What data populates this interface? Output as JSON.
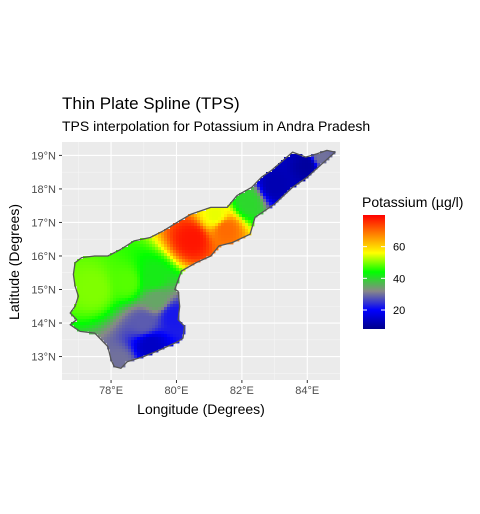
{
  "chart_data": {
    "type": "heatmap",
    "title": "Thin Plate Spline (TPS)",
    "subtitle": "TPS interpolation for Potassium in Andra Pradesh",
    "xlabel": "Longitude (Degrees)",
    "ylabel": "Latitude (Degrees)",
    "xlim": [
      76.5,
      85.0
    ],
    "ylim": [
      12.3,
      19.4
    ],
    "x_ticks": [
      78,
      80,
      82,
      84
    ],
    "x_tick_labels": [
      "78°E",
      "80°E",
      "82°E",
      "84°E"
    ],
    "y_ticks": [
      13,
      14,
      15,
      16,
      17,
      18,
      19
    ],
    "y_tick_labels": [
      "13°N",
      "14°N",
      "15°N",
      "16°N",
      "17°N",
      "18°N",
      "19°N"
    ],
    "grid": true,
    "legend": {
      "title": "Potassium (µg/l)",
      "position": "right",
      "range": [
        8,
        80
      ],
      "ticks": [
        20,
        40,
        60
      ],
      "tick_labels": [
        "20",
        "40",
        "60"
      ],
      "colors": [
        "#00008B",
        "#0000FF",
        "#888888",
        "#00FF00",
        "#FFFF00",
        "#FF8000",
        "#FF0000"
      ]
    },
    "outline": [
      [
        78.1,
        12.7
      ],
      [
        78.3,
        12.65
      ],
      [
        78.5,
        12.85
      ],
      [
        79.0,
        13.0
      ],
      [
        79.5,
        13.2
      ],
      [
        80.05,
        13.45
      ],
      [
        80.2,
        13.55
      ],
      [
        80.25,
        13.9
      ],
      [
        80.05,
        14.1
      ],
      [
        80.1,
        14.5
      ],
      [
        80.05,
        14.95
      ],
      [
        79.95,
        15.0
      ],
      [
        80.15,
        15.55
      ],
      [
        80.6,
        15.8
      ],
      [
        81.05,
        16.0
      ],
      [
        81.3,
        16.3
      ],
      [
        81.7,
        16.4
      ],
      [
        82.25,
        16.65
      ],
      [
        82.4,
        17.15
      ],
      [
        83.0,
        17.55
      ],
      [
        83.55,
        18.05
      ],
      [
        84.0,
        18.35
      ],
      [
        84.45,
        18.75
      ],
      [
        84.85,
        19.1
      ],
      [
        84.6,
        19.15
      ],
      [
        84.3,
        19.05
      ],
      [
        83.95,
        18.95
      ],
      [
        83.55,
        19.1
      ],
      [
        83.2,
        18.8
      ],
      [
        82.9,
        18.55
      ],
      [
        82.6,
        18.35
      ],
      [
        82.3,
        18.05
      ],
      [
        81.85,
        17.8
      ],
      [
        81.55,
        17.45
      ],
      [
        81.05,
        17.45
      ],
      [
        80.45,
        17.25
      ],
      [
        80.1,
        17.05
      ],
      [
        79.6,
        16.75
      ],
      [
        79.2,
        16.55
      ],
      [
        78.7,
        16.45
      ],
      [
        78.3,
        16.2
      ],
      [
        77.9,
        16.0
      ],
      [
        77.5,
        16.0
      ],
      [
        77.1,
        15.95
      ],
      [
        76.9,
        15.8
      ],
      [
        76.85,
        15.45
      ],
      [
        76.9,
        15.1
      ],
      [
        77.0,
        14.8
      ],
      [
        76.9,
        14.5
      ],
      [
        76.75,
        14.3
      ],
      [
        76.95,
        14.1
      ],
      [
        76.75,
        13.95
      ],
      [
        77.05,
        13.75
      ],
      [
        77.5,
        13.7
      ],
      [
        77.9,
        13.3
      ],
      [
        78.0,
        12.9
      ]
    ],
    "value_field": [
      {
        "lon": 77.5,
        "lat": 15.0,
        "value": 50
      },
      {
        "lon": 78.5,
        "lat": 15.2,
        "value": 48
      },
      {
        "lon": 79.3,
        "lat": 15.3,
        "value": 42
      },
      {
        "lon": 79.4,
        "lat": 14.7,
        "value": 35
      },
      {
        "lon": 79.0,
        "lat": 14.0,
        "value": 28
      },
      {
        "lon": 79.2,
        "lat": 13.3,
        "value": 14
      },
      {
        "lon": 78.3,
        "lat": 12.8,
        "value": 30
      },
      {
        "lon": 79.9,
        "lat": 14.2,
        "value": 22
      },
      {
        "lon": 80.5,
        "lat": 16.5,
        "value": 78
      },
      {
        "lon": 81.5,
        "lat": 16.8,
        "value": 70
      },
      {
        "lon": 81.2,
        "lat": 17.2,
        "value": 55
      },
      {
        "lon": 82.2,
        "lat": 17.6,
        "value": 40
      },
      {
        "lon": 83.0,
        "lat": 18.1,
        "value": 12
      },
      {
        "lon": 84.0,
        "lat": 18.7,
        "value": 10
      },
      {
        "lon": 84.4,
        "lat": 18.95,
        "value": 30
      }
    ]
  }
}
